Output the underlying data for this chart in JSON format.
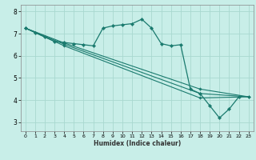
{
  "title": "",
  "xlabel": "Humidex (Indice chaleur)",
  "ylabel": "",
  "bg_color": "#c8eee8",
  "grid_color": "#a8d8d0",
  "line_color": "#1a7a6e",
  "xlim": [
    -0.5,
    23.5
  ],
  "ylim": [
    2.6,
    8.3
  ],
  "xticks": [
    0,
    1,
    2,
    3,
    4,
    5,
    6,
    7,
    8,
    9,
    10,
    11,
    12,
    13,
    14,
    15,
    16,
    17,
    18,
    19,
    20,
    21,
    22,
    23
  ],
  "yticks": [
    3,
    4,
    5,
    6,
    7,
    8
  ],
  "series": [
    {
      "x": [
        0,
        1,
        2,
        3,
        4,
        5,
        6,
        7,
        8,
        9,
        10,
        11,
        12,
        13,
        14,
        15,
        16,
        17,
        18,
        19,
        20,
        21,
        22
      ],
      "y": [
        7.25,
        7.05,
        6.85,
        6.65,
        6.6,
        6.55,
        6.5,
        6.45,
        7.25,
        7.35,
        7.4,
        7.45,
        7.65,
        7.25,
        6.55,
        6.45,
        6.5,
        4.5,
        4.3,
        3.75,
        3.2,
        3.6,
        4.15
      ]
    },
    {
      "x": [
        0,
        4,
        18,
        23
      ],
      "y": [
        7.25,
        6.58,
        4.5,
        4.15
      ]
    },
    {
      "x": [
        0,
        4,
        18,
        23
      ],
      "y": [
        7.25,
        6.52,
        4.3,
        4.15
      ]
    },
    {
      "x": [
        0,
        4,
        18,
        23
      ],
      "y": [
        7.25,
        6.45,
        4.1,
        4.15
      ]
    }
  ]
}
